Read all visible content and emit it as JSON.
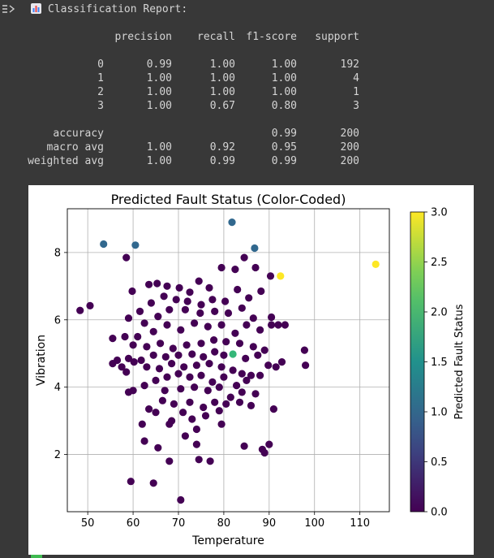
{
  "output": {
    "report_title": "Classification Report:",
    "report": {
      "headers": [
        "precision",
        "recall",
        "f1-score",
        "support"
      ],
      "rows": [
        {
          "label": "0",
          "precision": "0.99",
          "recall": "1.00",
          "f1": "1.00",
          "support": "192"
        },
        {
          "label": "1",
          "precision": "1.00",
          "recall": "1.00",
          "f1": "1.00",
          "support": "4"
        },
        {
          "label": "2",
          "precision": "1.00",
          "recall": "1.00",
          "f1": "1.00",
          "support": "1"
        },
        {
          "label": "3",
          "precision": "1.00",
          "recall": "0.67",
          "f1": "0.80",
          "support": "3"
        }
      ],
      "summary": [
        {
          "label": "accuracy",
          "precision": "",
          "recall": "",
          "f1": "0.99",
          "support": "200"
        },
        {
          "label": "macro avg",
          "precision": "1.00",
          "recall": "0.92",
          "f1": "0.95",
          "support": "200"
        },
        {
          "label": "weighted avg",
          "precision": "1.00",
          "recall": "0.99",
          "f1": "0.99",
          "support": "200"
        }
      ]
    }
  },
  "chart_data": {
    "type": "scatter",
    "title": "Predicted Fault Status (Color-Coded)",
    "xlabel": "Temperature",
    "ylabel": "Vibration",
    "xlim": [
      45.5,
      116.5
    ],
    "ylim": [
      0.3,
      9.3
    ],
    "xticks": [
      50,
      60,
      70,
      80,
      90,
      100,
      110
    ],
    "yticks": [
      2,
      4,
      6,
      8
    ],
    "grid": true,
    "colorbar": {
      "label": "Predicted Fault Status",
      "range": [
        0.0,
        3.0
      ],
      "ticks": [
        "0.0",
        "0.5",
        "1.0",
        "1.5",
        "2.0",
        "2.5",
        "3.0"
      ],
      "colormap": "viridis"
    },
    "points": [
      {
        "x": 53.5,
        "y": 8.25,
        "c": 1
      },
      {
        "x": 60.5,
        "y": 8.22,
        "c": 1
      },
      {
        "x": 81.8,
        "y": 8.9,
        "c": 1
      },
      {
        "x": 86.8,
        "y": 8.13,
        "c": 1
      },
      {
        "x": 92.5,
        "y": 7.3,
        "c": 3
      },
      {
        "x": 113.5,
        "y": 7.65,
        "c": 3
      },
      {
        "x": 82.0,
        "y": 4.98,
        "c": 2
      },
      {
        "x": 58.5,
        "y": 7.85,
        "c": 0
      },
      {
        "x": 48.3,
        "y": 6.28,
        "c": 0
      },
      {
        "x": 50.5,
        "y": 6.42,
        "c": 0
      },
      {
        "x": 59.8,
        "y": 6.85,
        "c": 0
      },
      {
        "x": 63.5,
        "y": 7.05,
        "c": 0
      },
      {
        "x": 65.3,
        "y": 7.08,
        "c": 0
      },
      {
        "x": 67.5,
        "y": 7.0,
        "c": 0
      },
      {
        "x": 70.2,
        "y": 6.95,
        "c": 0
      },
      {
        "x": 72.5,
        "y": 6.82,
        "c": 0
      },
      {
        "x": 74.5,
        "y": 7.15,
        "c": 0
      },
      {
        "x": 76.8,
        "y": 6.95,
        "c": 0
      },
      {
        "x": 79.5,
        "y": 7.55,
        "c": 0
      },
      {
        "x": 82.5,
        "y": 7.5,
        "c": 0
      },
      {
        "x": 84.5,
        "y": 7.85,
        "c": 0
      },
      {
        "x": 87.0,
        "y": 7.55,
        "c": 0
      },
      {
        "x": 90.3,
        "y": 7.3,
        "c": 0
      },
      {
        "x": 88.2,
        "y": 6.85,
        "c": 0
      },
      {
        "x": 85.5,
        "y": 6.65,
        "c": 0
      },
      {
        "x": 83.0,
        "y": 6.9,
        "c": 0
      },
      {
        "x": 80.3,
        "y": 6.55,
        "c": 0
      },
      {
        "x": 77.5,
        "y": 6.6,
        "c": 0
      },
      {
        "x": 75.0,
        "y": 6.45,
        "c": 0
      },
      {
        "x": 72.0,
        "y": 6.55,
        "c": 0
      },
      {
        "x": 69.5,
        "y": 6.6,
        "c": 0
      },
      {
        "x": 66.8,
        "y": 6.7,
        "c": 0
      },
      {
        "x": 64.0,
        "y": 6.5,
        "c": 0
      },
      {
        "x": 61.5,
        "y": 6.25,
        "c": 0
      },
      {
        "x": 59.0,
        "y": 6.05,
        "c": 0
      },
      {
        "x": 62.5,
        "y": 5.9,
        "c": 0
      },
      {
        "x": 65.5,
        "y": 6.1,
        "c": 0
      },
      {
        "x": 68.0,
        "y": 6.3,
        "c": 0
      },
      {
        "x": 71.5,
        "y": 6.3,
        "c": 0
      },
      {
        "x": 74.8,
        "y": 6.2,
        "c": 0
      },
      {
        "x": 78.0,
        "y": 6.25,
        "c": 0
      },
      {
        "x": 81.0,
        "y": 6.2,
        "c": 0
      },
      {
        "x": 84.0,
        "y": 6.35,
        "c": 0
      },
      {
        "x": 86.5,
        "y": 6.05,
        "c": 0
      },
      {
        "x": 90.5,
        "y": 6.08,
        "c": 0
      },
      {
        "x": 92.0,
        "y": 5.85,
        "c": 0
      },
      {
        "x": 93.5,
        "y": 5.85,
        "c": 0
      },
      {
        "x": 90.5,
        "y": 5.85,
        "c": 0
      },
      {
        "x": 88.0,
        "y": 5.7,
        "c": 0
      },
      {
        "x": 85.0,
        "y": 5.85,
        "c": 0
      },
      {
        "x": 82.5,
        "y": 5.6,
        "c": 0
      },
      {
        "x": 79.5,
        "y": 5.85,
        "c": 0
      },
      {
        "x": 76.5,
        "y": 5.8,
        "c": 0
      },
      {
        "x": 73.5,
        "y": 5.9,
        "c": 0
      },
      {
        "x": 70.5,
        "y": 5.7,
        "c": 0
      },
      {
        "x": 67.5,
        "y": 5.85,
        "c": 0
      },
      {
        "x": 64.5,
        "y": 5.65,
        "c": 0
      },
      {
        "x": 61.0,
        "y": 5.5,
        "c": 0
      },
      {
        "x": 58.2,
        "y": 5.5,
        "c": 0
      },
      {
        "x": 55.5,
        "y": 5.45,
        "c": 0
      },
      {
        "x": 60.0,
        "y": 5.25,
        "c": 0
      },
      {
        "x": 63.0,
        "y": 5.2,
        "c": 0
      },
      {
        "x": 66.0,
        "y": 5.3,
        "c": 0
      },
      {
        "x": 68.8,
        "y": 5.15,
        "c": 0
      },
      {
        "x": 71.8,
        "y": 5.25,
        "c": 0
      },
      {
        "x": 75.0,
        "y": 5.3,
        "c": 0
      },
      {
        "x": 77.8,
        "y": 5.4,
        "c": 0
      },
      {
        "x": 80.5,
        "y": 5.35,
        "c": 0
      },
      {
        "x": 83.5,
        "y": 5.3,
        "c": 0
      },
      {
        "x": 86.5,
        "y": 5.2,
        "c": 0
      },
      {
        "x": 89.0,
        "y": 5.1,
        "c": 0
      },
      {
        "x": 87.5,
        "y": 4.95,
        "c": 0
      },
      {
        "x": 84.8,
        "y": 4.85,
        "c": 0
      },
      {
        "x": 80.0,
        "y": 4.95,
        "c": 0
      },
      {
        "x": 78.0,
        "y": 5.05,
        "c": 0
      },
      {
        "x": 75.5,
        "y": 4.9,
        "c": 0
      },
      {
        "x": 73.0,
        "y": 4.98,
        "c": 0
      },
      {
        "x": 70.0,
        "y": 4.95,
        "c": 0
      },
      {
        "x": 67.2,
        "y": 4.9,
        "c": 0
      },
      {
        "x": 64.5,
        "y": 4.95,
        "c": 0
      },
      {
        "x": 61.8,
        "y": 4.8,
        "c": 0
      },
      {
        "x": 59.0,
        "y": 4.85,
        "c": 0
      },
      {
        "x": 56.5,
        "y": 4.8,
        "c": 0
      },
      {
        "x": 55.5,
        "y": 4.7,
        "c": 0
      },
      {
        "x": 57.5,
        "y": 4.6,
        "c": 0
      },
      {
        "x": 58.5,
        "y": 4.45,
        "c": 0
      },
      {
        "x": 60.2,
        "y": 4.75,
        "c": 0
      },
      {
        "x": 63.0,
        "y": 4.6,
        "c": 0
      },
      {
        "x": 65.8,
        "y": 4.55,
        "c": 0
      },
      {
        "x": 68.5,
        "y": 4.7,
        "c": 0
      },
      {
        "x": 71.2,
        "y": 4.6,
        "c": 0
      },
      {
        "x": 74.0,
        "y": 4.65,
        "c": 0
      },
      {
        "x": 76.8,
        "y": 4.7,
        "c": 0
      },
      {
        "x": 79.5,
        "y": 4.6,
        "c": 0
      },
      {
        "x": 82.0,
        "y": 4.5,
        "c": 0
      },
      {
        "x": 84.0,
        "y": 4.4,
        "c": 0
      },
      {
        "x": 86.0,
        "y": 4.35,
        "c": 0
      },
      {
        "x": 88.0,
        "y": 4.35,
        "c": 0
      },
      {
        "x": 89.8,
        "y": 4.65,
        "c": 0
      },
      {
        "x": 91.5,
        "y": 4.6,
        "c": 0
      },
      {
        "x": 92.8,
        "y": 4.75,
        "c": 0
      },
      {
        "x": 97.8,
        "y": 5.1,
        "c": 0
      },
      {
        "x": 98.0,
        "y": 4.65,
        "c": 0
      },
      {
        "x": 85.0,
        "y": 4.2,
        "c": 0
      },
      {
        "x": 82.8,
        "y": 4.05,
        "c": 0
      },
      {
        "x": 80.0,
        "y": 4.3,
        "c": 0
      },
      {
        "x": 77.5,
        "y": 4.15,
        "c": 0
      },
      {
        "x": 75.0,
        "y": 4.35,
        "c": 0
      },
      {
        "x": 72.5,
        "y": 4.3,
        "c": 0
      },
      {
        "x": 70.0,
        "y": 4.4,
        "c": 0
      },
      {
        "x": 67.5,
        "y": 4.3,
        "c": 0
      },
      {
        "x": 65.0,
        "y": 4.2,
        "c": 0
      },
      {
        "x": 62.5,
        "y": 4.05,
        "c": 0
      },
      {
        "x": 60.0,
        "y": 3.9,
        "c": 0
      },
      {
        "x": 59.0,
        "y": 3.85,
        "c": 0
      },
      {
        "x": 67.0,
        "y": 3.9,
        "c": 0
      },
      {
        "x": 70.5,
        "y": 3.95,
        "c": 0
      },
      {
        "x": 73.5,
        "y": 4.0,
        "c": 0
      },
      {
        "x": 76.5,
        "y": 3.9,
        "c": 0
      },
      {
        "x": 79.0,
        "y": 4.0,
        "c": 0
      },
      {
        "x": 81.5,
        "y": 3.7,
        "c": 0
      },
      {
        "x": 84.0,
        "y": 3.85,
        "c": 0
      },
      {
        "x": 87.0,
        "y": 3.8,
        "c": 0
      },
      {
        "x": 66.5,
        "y": 3.6,
        "c": 0
      },
      {
        "x": 69.0,
        "y": 3.5,
        "c": 0
      },
      {
        "x": 72.5,
        "y": 3.55,
        "c": 0
      },
      {
        "x": 75.5,
        "y": 3.4,
        "c": 0
      },
      {
        "x": 78.0,
        "y": 3.55,
        "c": 0
      },
      {
        "x": 80.5,
        "y": 3.5,
        "c": 0
      },
      {
        "x": 63.5,
        "y": 3.35,
        "c": 0
      },
      {
        "x": 65.0,
        "y": 3.25,
        "c": 0
      },
      {
        "x": 71.0,
        "y": 3.25,
        "c": 0
      },
      {
        "x": 73.0,
        "y": 3.05,
        "c": 0
      },
      {
        "x": 76.0,
        "y": 3.15,
        "c": 0
      },
      {
        "x": 79.0,
        "y": 3.3,
        "c": 0
      },
      {
        "x": 83.5,
        "y": 3.55,
        "c": 0
      },
      {
        "x": 86.0,
        "y": 3.45,
        "c": 0
      },
      {
        "x": 91.0,
        "y": 3.35,
        "c": 0
      },
      {
        "x": 68.5,
        "y": 3.0,
        "c": 0
      },
      {
        "x": 74.0,
        "y": 2.75,
        "c": 0
      },
      {
        "x": 79.5,
        "y": 2.9,
        "c": 0
      },
      {
        "x": 62.0,
        "y": 2.9,
        "c": 0
      },
      {
        "x": 68.0,
        "y": 2.9,
        "c": 0
      },
      {
        "x": 71.5,
        "y": 2.55,
        "c": 0
      },
      {
        "x": 62.5,
        "y": 2.4,
        "c": 0
      },
      {
        "x": 65.5,
        "y": 2.2,
        "c": 0
      },
      {
        "x": 74.0,
        "y": 2.3,
        "c": 0
      },
      {
        "x": 84.5,
        "y": 2.25,
        "c": 0
      },
      {
        "x": 88.5,
        "y": 2.15,
        "c": 0
      },
      {
        "x": 90.0,
        "y": 2.3,
        "c": 0
      },
      {
        "x": 89.0,
        "y": 2.05,
        "c": 0
      },
      {
        "x": 68.0,
        "y": 1.8,
        "c": 0
      },
      {
        "x": 74.5,
        "y": 1.85,
        "c": 0
      },
      {
        "x": 77.0,
        "y": 1.8,
        "c": 0
      },
      {
        "x": 59.5,
        "y": 1.2,
        "c": 0
      },
      {
        "x": 64.5,
        "y": 1.15,
        "c": 0
      },
      {
        "x": 70.5,
        "y": 0.65,
        "c": 0
      }
    ]
  }
}
